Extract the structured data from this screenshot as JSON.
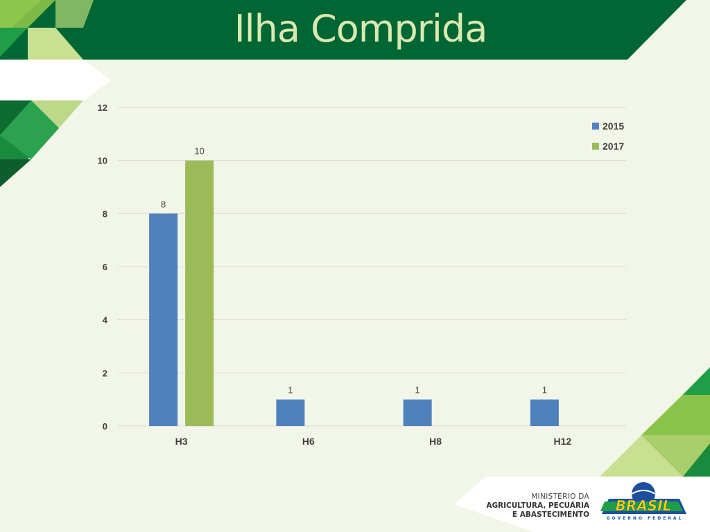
{
  "slide": {
    "title": "Ilha Comprida",
    "ministry_lines": [
      "MINISTÉRIO DA",
      "AGRICULTURA, PECUÁRIA",
      "E ABASTECIMENTO"
    ],
    "brand_logo_text": "BRASIL",
    "brand_tagline": "GOVERNO FEDERAL",
    "colors": {
      "dark_green": "#006633",
      "light_green": "#8cc63e",
      "pale_green": "#c8e08f",
      "background": "#f2f6e8",
      "title_text": "#dbe9b0"
    }
  },
  "chart_data": {
    "type": "bar",
    "title": "",
    "xlabel": "",
    "ylabel": "",
    "categories": [
      "H3",
      "H6",
      "H8",
      "H12"
    ],
    "series": [
      {
        "name": "2015",
        "color": "#4f81bd",
        "values": [
          8,
          1,
          1,
          1
        ],
        "labels": [
          "8",
          "1",
          "1",
          "1"
        ]
      },
      {
        "name": "2017",
        "color": "#9bbb59",
        "values": [
          10,
          null,
          null,
          null
        ],
        "labels": [
          "10",
          "",
          "",
          ""
        ]
      }
    ],
    "ylim": [
      0,
      12
    ],
    "yticks": [
      0,
      2,
      4,
      6,
      8,
      10,
      12
    ],
    "ytick_labels": [
      "0",
      "2",
      "4",
      "6",
      "8",
      "10",
      "12"
    ],
    "grid": true,
    "legend_position": "top-right"
  }
}
